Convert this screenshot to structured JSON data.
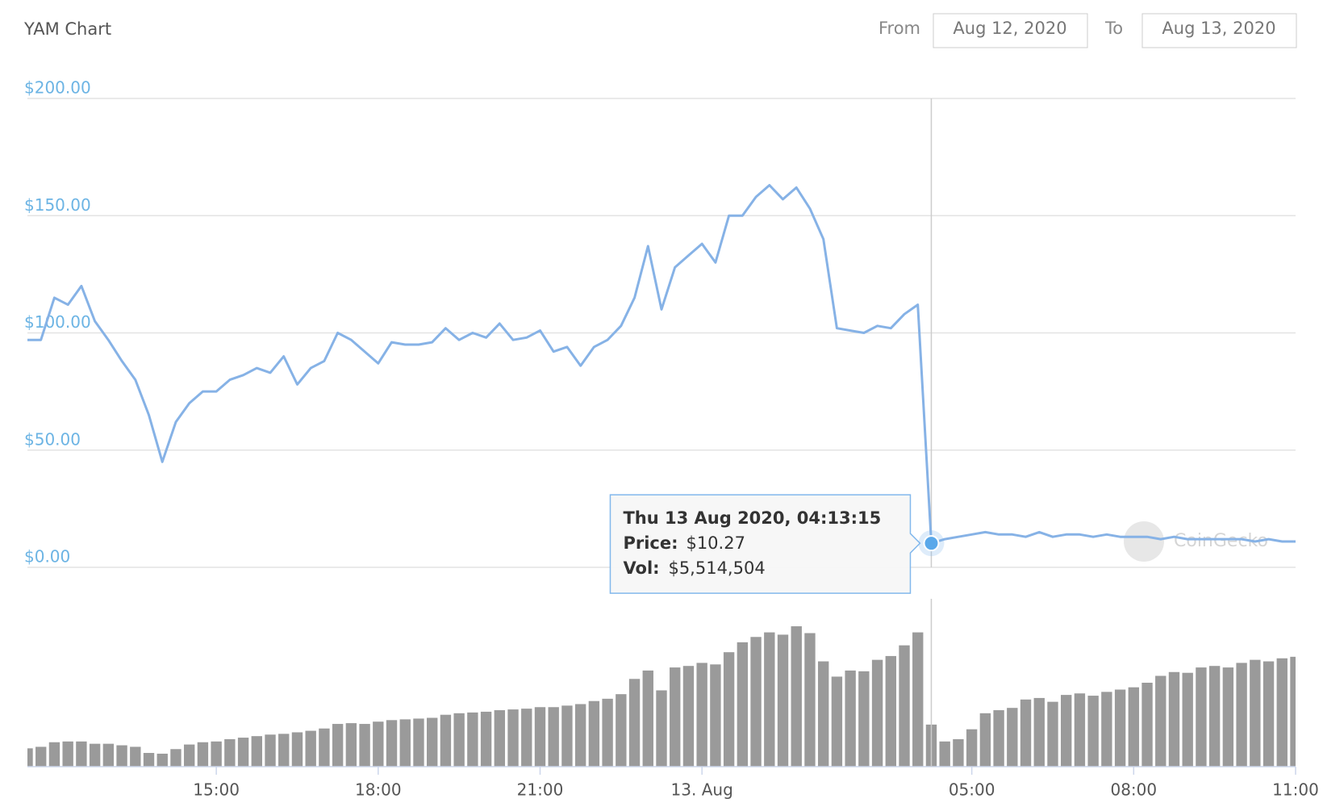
{
  "chart_data": {
    "type": "line",
    "title": "YAM Chart",
    "range_from_label": "From",
    "range_from": "Aug 12, 2020",
    "range_to_label": "To",
    "range_to": "Aug 13, 2020",
    "watermark": "CoinGecko",
    "categories": [
      null,
      null,
      null,
      null,
      null,
      null,
      null,
      null,
      null,
      null,
      null,
      null,
      null,
      null,
      "15:00",
      null,
      null,
      null,
      null,
      null,
      null,
      null,
      null,
      null,
      null,
      null,
      "18:00",
      null,
      null,
      null,
      null,
      null,
      null,
      null,
      null,
      null,
      null,
      null,
      "21:00",
      null,
      null,
      null,
      null,
      null,
      null,
      null,
      null,
      null,
      null,
      null,
      "13. Aug",
      null,
      null,
      null,
      null,
      null,
      null,
      null,
      null,
      null,
      null,
      null,
      null,
      null,
      null,
      null,
      null,
      null,
      null,
      null,
      "05:00",
      null,
      null,
      null,
      null,
      null,
      null,
      null,
      null,
      null,
      null,
      null,
      "08:00",
      null,
      null,
      null,
      null,
      null,
      null,
      null,
      null,
      null,
      null,
      null,
      "11:00"
    ],
    "series": [
      {
        "name": "Price",
        "color": "#86b2e6",
        "values": [
          97,
          97,
          115,
          112,
          120,
          105,
          97,
          88,
          80,
          65,
          45,
          62,
          70,
          75,
          75,
          80,
          82,
          85,
          83,
          90,
          78,
          85,
          88,
          100,
          97,
          92,
          87,
          96,
          95,
          95,
          96,
          102,
          97,
          100,
          98,
          104,
          97,
          98,
          101,
          92,
          94,
          86,
          94,
          97,
          103,
          115,
          137,
          110,
          128,
          133,
          138,
          130,
          150,
          150,
          158,
          163,
          157,
          162,
          153,
          140,
          102,
          101,
          100,
          103,
          102,
          108,
          112,
          10.27,
          12,
          13,
          14,
          15,
          14,
          14,
          13,
          15,
          13,
          14,
          14,
          13,
          14,
          13,
          13,
          13,
          12,
          13,
          12,
          12,
          12,
          12,
          12,
          11,
          12,
          11,
          11
        ]
      },
      {
        "name": "Vol",
        "color": "#9a9a9a",
        "axis": "y2",
        "values": [
          2400000,
          2600000,
          3200000,
          3300000,
          3300000,
          3000000,
          3000000,
          2800000,
          2600000,
          1800000,
          1700000,
          2300000,
          2900000,
          3200000,
          3300000,
          3600000,
          3800000,
          4000000,
          4200000,
          4300000,
          4500000,
          4700000,
          5000000,
          5600000,
          5700000,
          5600000,
          5900000,
          6100000,
          6200000,
          6300000,
          6400000,
          6800000,
          7000000,
          7100000,
          7200000,
          7400000,
          7500000,
          7600000,
          7800000,
          7800000,
          8000000,
          8200000,
          8600000,
          8900000,
          9500000,
          11500000,
          12600000,
          10000000,
          13000000,
          13200000,
          13600000,
          13400000,
          15000000,
          16300000,
          17000000,
          17600000,
          17300000,
          18400000,
          17500000,
          13800000,
          11800000,
          12600000,
          12500000,
          14000000,
          14500000,
          15900000,
          17600000,
          5514504,
          3300000,
          3600000,
          4900000,
          7000000,
          7400000,
          7700000,
          8800000,
          9000000,
          8500000,
          9400000,
          9600000,
          9300000,
          9800000,
          10100000,
          10400000,
          11000000,
          11900000,
          12400000,
          12300000,
          13000000,
          13200000,
          13000000,
          13600000,
          14000000,
          13800000,
          14200000,
          14400000
        ]
      }
    ],
    "ylim": [
      0,
      200
    ],
    "yticks": [
      {
        "value": 0,
        "label": "$0.00"
      },
      {
        "value": 50,
        "label": "$50.00"
      },
      {
        "value": 100,
        "label": "$100.00"
      },
      {
        "value": 150,
        "label": "$150.00"
      },
      {
        "value": 200,
        "label": "$200.00"
      }
    ],
    "y2lim": [
      0,
      22000000
    ],
    "grid": true,
    "tooltip": {
      "index": 67,
      "date": "Thu 13 Aug 2020, 04:13:15",
      "price_label": "Price:",
      "price": "$10.27",
      "vol_label": "Vol:",
      "vol": "$5,514,504"
    }
  }
}
